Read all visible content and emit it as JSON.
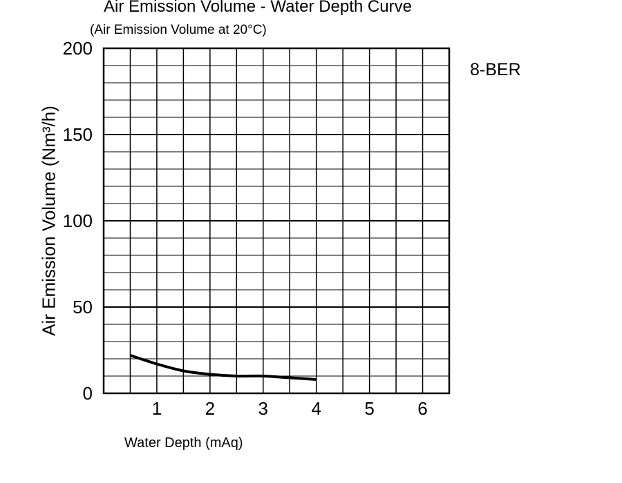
{
  "chart_data": {
    "type": "line",
    "title": "Air Emission Volume - Water Depth Curve",
    "subtitle": "(Air Emission Volume at 20°C)",
    "annotation": "8-BER",
    "xlabel": "Water Depth (mAq)",
    "ylabel": "Air Emission Volume (Nm³/h)",
    "xlim": [
      0,
      6.5
    ],
    "ylim": [
      0,
      200
    ],
    "x_ticks": [
      "1",
      "2",
      "3",
      "4",
      "5",
      "6"
    ],
    "x_tick_values": [
      1,
      2,
      3,
      4,
      5,
      6
    ],
    "y_ticks": [
      "0",
      "50",
      "100",
      "150",
      "200"
    ],
    "y_tick_values": [
      0,
      50,
      100,
      150,
      200
    ],
    "grid": true,
    "line_color": "#000000",
    "series": [
      {
        "x": [
          0.5,
          1.0,
          1.5,
          2.0,
          2.5,
          3.0,
          3.5,
          4.0
        ],
        "y": [
          22,
          17,
          13,
          11,
          10,
          10,
          9,
          8
        ]
      }
    ]
  }
}
